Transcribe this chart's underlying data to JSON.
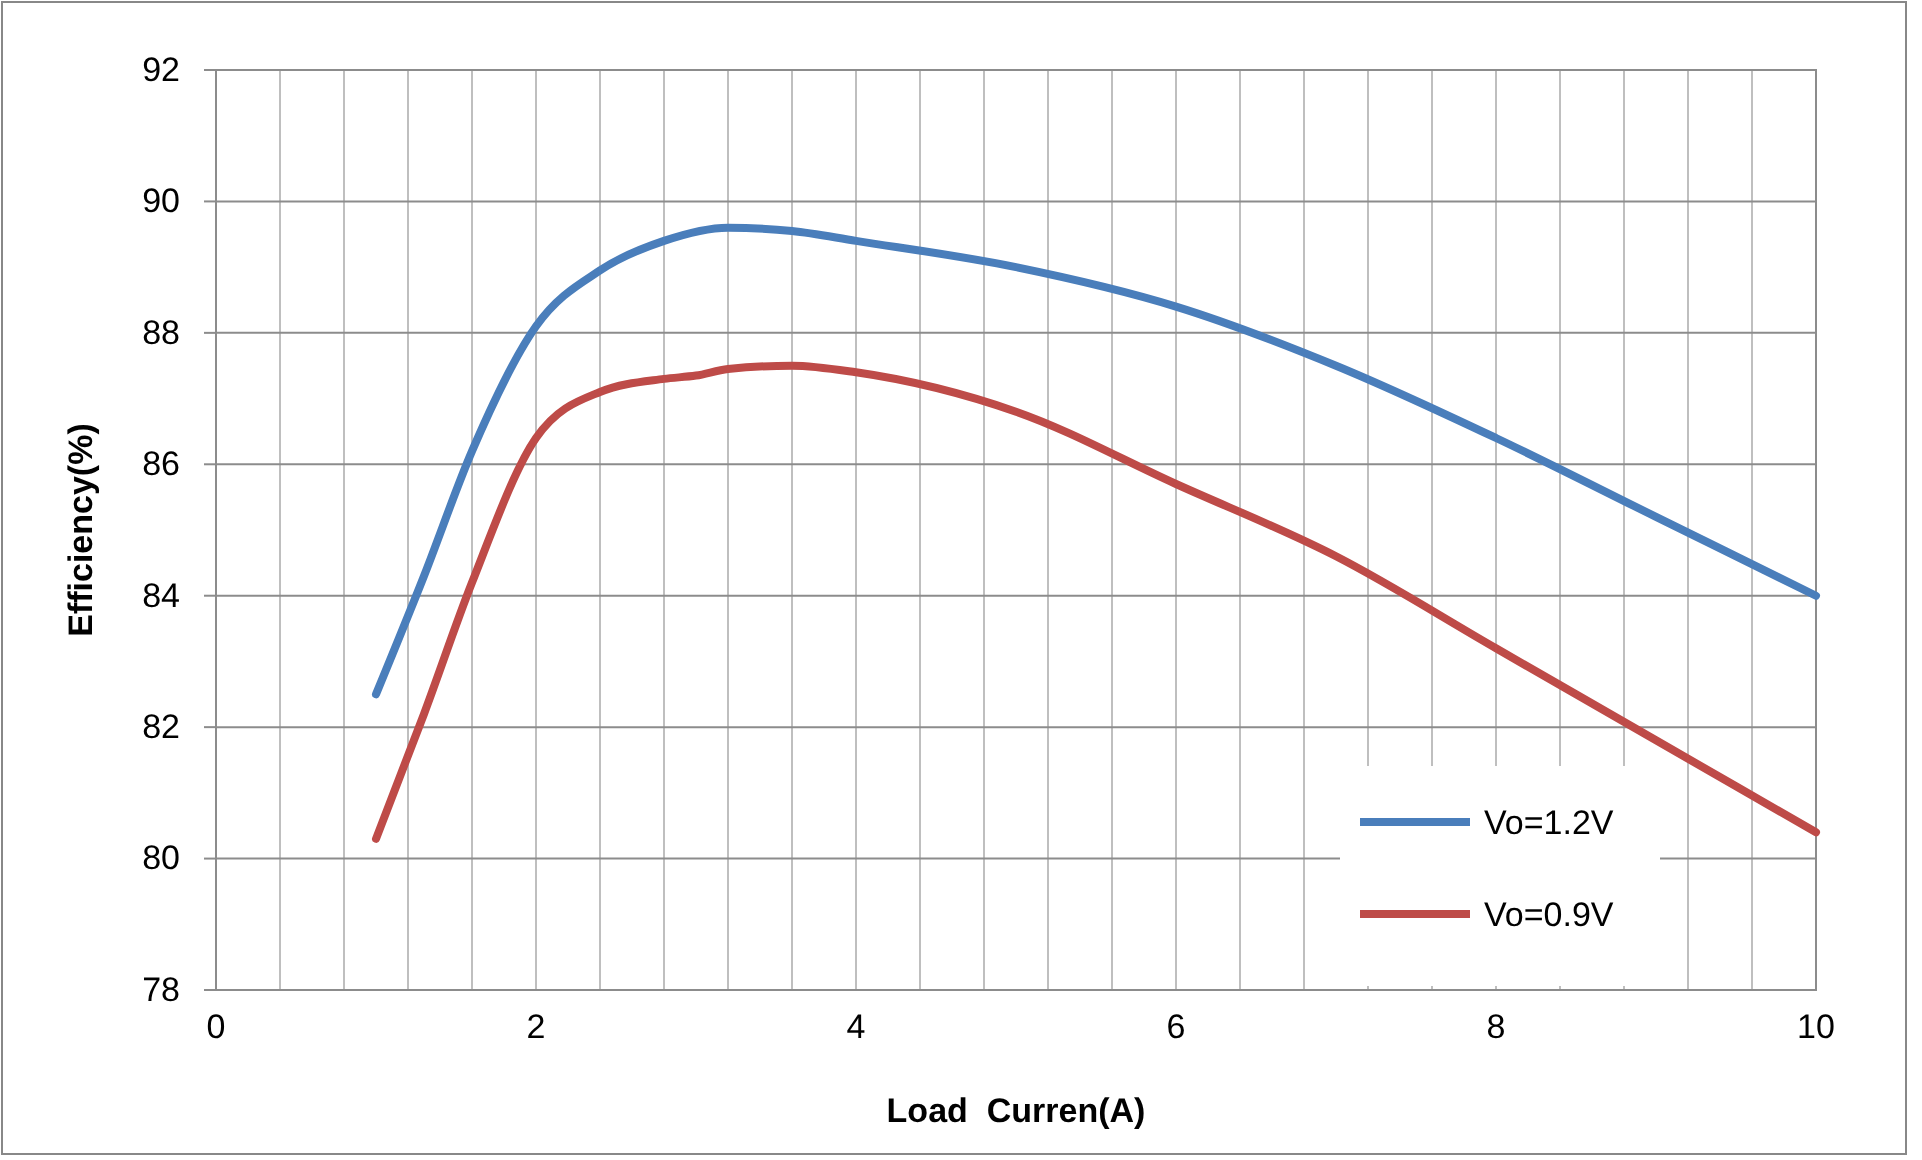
{
  "chart_data": {
    "type": "line",
    "xlabel": "Load  Curren(A)",
    "ylabel": "Efficiency(%)",
    "xlim": [
      0,
      10
    ],
    "ylim": [
      78,
      92
    ],
    "xticks": [
      0,
      {
        "value": 0.4,
        "label": null
      },
      {
        "value": 0.8,
        "label": null
      },
      {
        "value": 1.2,
        "label": null
      },
      {
        "value": 1.6,
        "label": null
      },
      2,
      {
        "value": 2.4,
        "label": null
      },
      {
        "value": 2.8,
        "label": null
      },
      {
        "value": 3.2,
        "label": null
      },
      {
        "value": 3.6,
        "label": null
      },
      4,
      {
        "value": 4.4,
        "label": null
      },
      {
        "value": 4.8,
        "label": null
      },
      {
        "value": 5.2,
        "label": null
      },
      {
        "value": 5.6,
        "label": null
      },
      6,
      {
        "value": 6.4,
        "label": null
      },
      {
        "value": 6.8,
        "label": null
      },
      {
        "value": 7.2,
        "label": null
      },
      {
        "value": 7.6,
        "label": null
      },
      8,
      {
        "value": 8.4,
        "label": null
      },
      {
        "value": 8.8,
        "label": null
      },
      {
        "value": 9.2,
        "label": null
      },
      {
        "value": 9.6,
        "label": null
      },
      10
    ],
    "yticks": [
      78,
      80,
      82,
      84,
      86,
      88,
      90,
      92
    ],
    "grid": true,
    "legend": "bottom right",
    "marker": "none",
    "line_style": "solid",
    "series": [
      {
        "name": "Vo=1.2V",
        "color": "#4a7ebb",
        "x": [
          1,
          1.3,
          1.6,
          2,
          2.4,
          2.8,
          3.2,
          3.6,
          4,
          5,
          6,
          7,
          8,
          9,
          10
        ],
        "values": [
          82.5,
          84.3,
          86.2,
          88.1,
          88.95,
          89.4,
          89.6,
          89.55,
          89.4,
          89.0,
          88.4,
          87.5,
          86.4,
          85.2,
          84.0
        ]
      },
      {
        "name": "Vo=0.9V",
        "color": "#be4b48",
        "x": [
          1,
          1.3,
          1.6,
          2,
          2.4,
          2.8,
          3,
          3.2,
          3.6,
          4,
          5,
          6,
          7,
          8,
          9,
          10
        ],
        "values": [
          80.3,
          82.2,
          84.2,
          86.4,
          87.1,
          87.3,
          87.35,
          87.45,
          87.5,
          87.4,
          86.8,
          85.7,
          84.6,
          83.2,
          81.8,
          80.4
        ]
      }
    ]
  }
}
